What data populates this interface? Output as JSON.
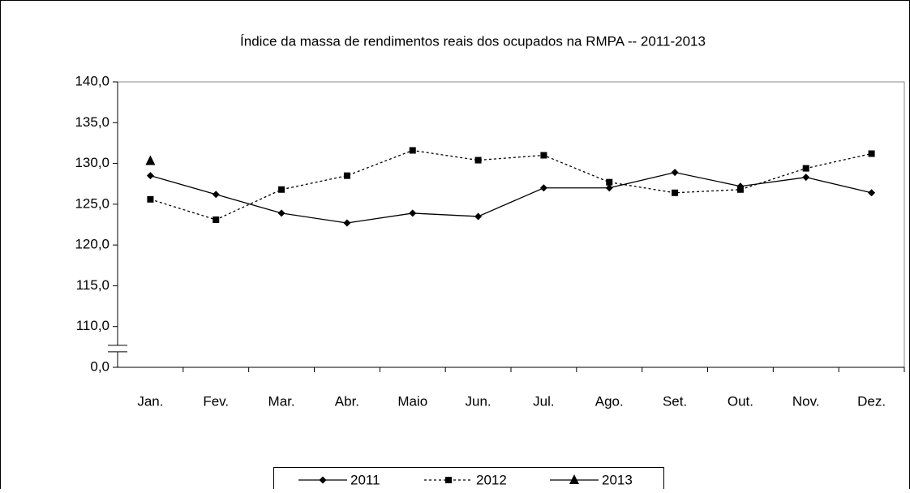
{
  "chart_data": {
    "type": "line",
    "title": "Índice da massa de rendimentos reais dos ocupados na RMPA -- 2011-2013",
    "categories": [
      "Jan.",
      "Fev.",
      "Mar.",
      "Abr.",
      "Maio",
      "Jun.",
      "Jul.",
      "Ago.",
      "Set.",
      "Out.",
      "Nov.",
      "Dez."
    ],
    "series": [
      {
        "name": "2011",
        "color": "#000000",
        "marker": "diamond",
        "dashed": false,
        "values": [
          128.5,
          126.2,
          123.9,
          122.7,
          123.9,
          123.5,
          127.0,
          127.0,
          128.9,
          127.2,
          128.3,
          126.4
        ]
      },
      {
        "name": "2012",
        "color": "#000000",
        "marker": "square",
        "dashed": true,
        "values": [
          125.6,
          123.1,
          126.8,
          128.5,
          131.6,
          130.4,
          131.0,
          127.7,
          126.4,
          126.8,
          129.4,
          131.2
        ]
      },
      {
        "name": "2013",
        "color": "#000000",
        "marker": "triangle",
        "dashed": false,
        "values": [
          130.3,
          null,
          null,
          null,
          null,
          null,
          null,
          null,
          null,
          null,
          null,
          null
        ]
      }
    ],
    "ylim": [
      0,
      140
    ],
    "yticks": [
      {
        "value": 0,
        "label": "0,0"
      },
      {
        "value": 110,
        "label": "110,0"
      },
      {
        "value": 115,
        "label": "115,0"
      },
      {
        "value": 120,
        "label": "120,0"
      },
      {
        "value": 125,
        "label": "125,0"
      },
      {
        "value": 130,
        "label": "130,0"
      },
      {
        "value": 135,
        "label": "135,0"
      },
      {
        "value": 140,
        "label": "140,0"
      }
    ],
    "axis_break": true,
    "legend": "bottom"
  }
}
